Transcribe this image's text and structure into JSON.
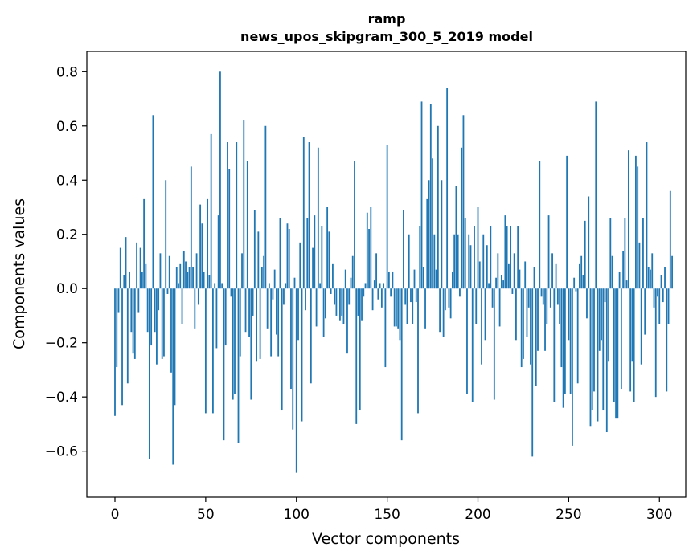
{
  "chart_data": {
    "type": "bar",
    "title": "ramp",
    "subtitle": "news_upos_skipgram_300_5_2019 model",
    "xlabel": "Vector components",
    "ylabel": "Components values",
    "xlim": [
      -15.5,
      314.5
    ],
    "ylim": [
      -0.77,
      0.875
    ],
    "xticks": [
      0,
      50,
      100,
      150,
      200,
      250,
      300
    ],
    "xtick_labels": [
      "0",
      "50",
      "100",
      "150",
      "200",
      "250",
      "300"
    ],
    "yticks": [
      -0.6,
      -0.4,
      -0.2,
      0.0,
      0.2,
      0.4,
      0.6,
      0.8
    ],
    "ytick_labels": [
      "−0.6",
      "−0.4",
      "−0.2",
      "0.0",
      "0.2",
      "0.4",
      "0.6",
      "0.8"
    ],
    "grid": false,
    "bar_color": "#1f77b4",
    "x_start": 0,
    "values": [
      -0.47,
      -0.29,
      -0.09,
      0.15,
      -0.43,
      0.05,
      0.19,
      -0.35,
      0.06,
      -0.16,
      -0.24,
      -0.26,
      0.17,
      -0.09,
      0.15,
      0.06,
      0.33,
      0.09,
      -0.16,
      -0.63,
      -0.21,
      0.64,
      -0.16,
      -0.28,
      -0.08,
      0.13,
      -0.26,
      -0.25,
      0.4,
      -0.02,
      0.12,
      -0.31,
      -0.65,
      -0.43,
      0.08,
      0.02,
      0.09,
      -0.13,
      0.14,
      0.1,
      0.06,
      0.08,
      0.45,
      0.08,
      -0.15,
      0.13,
      -0.06,
      0.31,
      0.24,
      0.06,
      -0.46,
      0.33,
      0.05,
      0.57,
      -0.46,
      0.02,
      -0.22,
      0.27,
      0.8,
      0.02,
      -0.56,
      -0.21,
      0.54,
      0.44,
      -0.03,
      -0.41,
      -0.39,
      0.54,
      -0.57,
      -0.25,
      0.13,
      0.62,
      -0.16,
      0.47,
      -0.18,
      -0.41,
      -0.1,
      0.29,
      -0.27,
      0.21,
      -0.26,
      0.08,
      0.12,
      0.6,
      -0.15,
      0.02,
      -0.25,
      -0.04,
      0.07,
      -0.17,
      -0.25,
      0.26,
      -0.45,
      -0.06,
      0.02,
      0.24,
      0.22,
      -0.37,
      -0.52,
      0.04,
      -0.68,
      -0.19,
      0.17,
      -0.49,
      0.56,
      -0.08,
      0.26,
      0.54,
      -0.35,
      0.15,
      0.27,
      -0.14,
      0.52,
      0.02,
      0.23,
      -0.18,
      -0.11,
      0.3,
      0.21,
      -0.02,
      0.09,
      -0.06,
      -0.1,
      0.0,
      -0.12,
      -0.1,
      -0.13,
      0.07,
      -0.24,
      -0.06,
      0.04,
      0.12,
      0.47,
      -0.5,
      -0.1,
      -0.45,
      -0.12,
      -0.03,
      0.02,
      0.28,
      0.22,
      0.3,
      -0.08,
      0.03,
      0.13,
      -0.04,
      0.02,
      -0.07,
      0.02,
      -0.29,
      0.53,
      0.06,
      -0.03,
      0.06,
      -0.14,
      -0.14,
      -0.15,
      -0.19,
      -0.56,
      0.29,
      -0.06,
      -0.13,
      0.2,
      -0.05,
      -0.13,
      0.07,
      -0.05,
      -0.46,
      0.23,
      0.69,
      0.08,
      -0.15,
      0.33,
      0.4,
      0.68,
      0.48,
      0.2,
      0.07,
      0.6,
      -0.16,
      0.4,
      -0.18,
      -0.08,
      0.74,
      -0.07,
      -0.11,
      0.06,
      0.2,
      0.38,
      0.2,
      -0.03,
      0.52,
      0.64,
      0.26,
      -0.39,
      0.2,
      0.16,
      -0.42,
      0.23,
      -0.13,
      0.3,
      0.1,
      -0.28,
      0.2,
      -0.19,
      0.16,
      0.02,
      0.23,
      -0.07,
      -0.41,
      0.04,
      0.13,
      -0.14,
      0.05,
      0.03,
      0.27,
      0.23,
      0.09,
      0.23,
      -0.02,
      0.13,
      -0.19,
      0.23,
      0.07,
      -0.29,
      -0.26,
      0.1,
      -0.18,
      -0.07,
      -0.28,
      -0.62,
      0.08,
      -0.36,
      -0.23,
      0.47,
      -0.03,
      -0.06,
      -0.23,
      -0.13,
      0.27,
      -0.07,
      0.13,
      -0.42,
      0.09,
      -0.06,
      -0.13,
      -0.29,
      -0.44,
      -0.39,
      0.49,
      -0.19,
      -0.39,
      -0.58,
      0.04,
      -0.01,
      -0.35,
      0.09,
      0.12,
      0.05,
      0.25,
      -0.11,
      0.34,
      -0.51,
      -0.45,
      -0.38,
      0.69,
      -0.49,
      -0.23,
      -0.19,
      -0.45,
      -0.05,
      -0.53,
      -0.27,
      0.26,
      0.12,
      -0.42,
      -0.48,
      -0.48,
      0.06,
      -0.37,
      0.14,
      0.26,
      0.03,
      0.51,
      -0.38,
      -0.27,
      -0.42,
      0.49,
      0.45,
      0.17,
      -0.28,
      0.26,
      -0.17,
      0.54,
      0.08,
      0.07,
      0.13,
      -0.07,
      -0.4,
      -0.03,
      -0.13,
      0.05,
      -0.05,
      0.08,
      -0.38,
      -0.13,
      0.36,
      0.12
    ]
  }
}
